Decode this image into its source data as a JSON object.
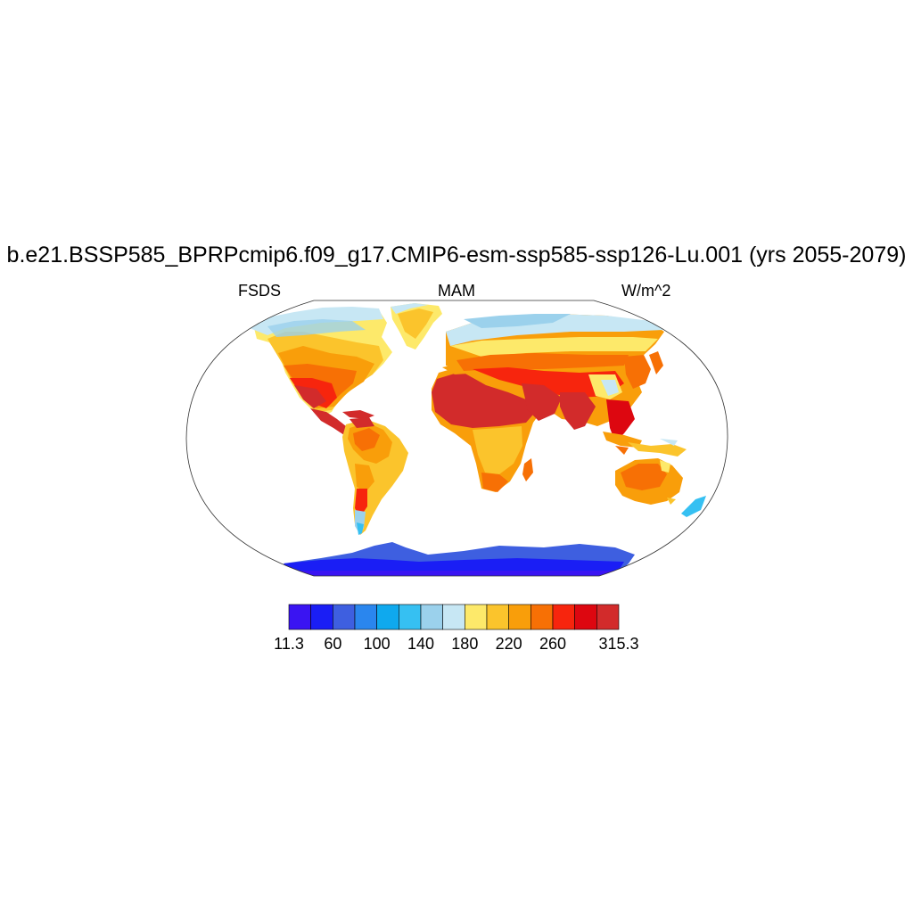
{
  "title": "b.e21.BSSP585_BPRPcmip6.f09_g17.CMIP6-esm-ssp585-ssp126-Lu.001 (yrs 2055-2079)",
  "left_label": "FSDS",
  "center_label": "MAM",
  "right_label": "W/m^2",
  "projection": "robinson",
  "colorbar": {
    "colors": [
      "#3a14f2",
      "#1a1ef5",
      "#3e5fe0",
      "#2a86ee",
      "#0fa9ee",
      "#36c0f2",
      "#9bd1ec",
      "#c7e7f4",
      "#fde96a",
      "#fbc42c",
      "#f99e0a",
      "#f77005",
      "#f7250d",
      "#dd0710",
      "#d22b2b"
    ],
    "tick_labels": [
      "11.3",
      "",
      "60",
      "",
      "100",
      "",
      "140",
      "",
      "180",
      "",
      "220",
      "",
      "260",
      "",
      "",
      "315.3"
    ]
  },
  "regions": [
    {
      "name": "Antarctica",
      "level": "very-low"
    },
    {
      "name": "Sahara",
      "level": "highest"
    },
    {
      "name": "Arabian Peninsula",
      "level": "highest"
    },
    {
      "name": "Greenland",
      "level": "medium"
    },
    {
      "name": "Siberia",
      "level": "low"
    },
    {
      "name": "Australia",
      "level": "high"
    },
    {
      "name": "Amazon",
      "level": "medium-high"
    }
  ]
}
